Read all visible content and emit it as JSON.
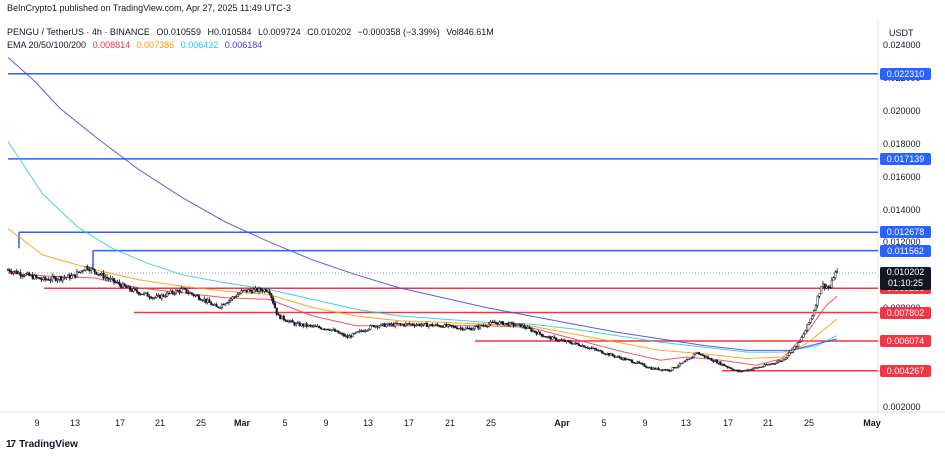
{
  "attribution": "BeInCrypto1 published on TradingView.com, Apr 27, 2025 11:49 UTC-3",
  "symbol": {
    "pair": "PENGU / TetherUS · 4h · BINANCE",
    "ohlc": [
      {
        "key": "O",
        "value": "0.010559"
      },
      {
        "key": "H",
        "value": "0.010584"
      },
      {
        "key": "L",
        "value": "0.009724"
      },
      {
        "key": "C",
        "value": "0.010202"
      }
    ],
    "change": "−0.000358 (−3.39%)",
    "volume_label": "Vol",
    "volume": "846.61M"
  },
  "ema": {
    "label": "EMA 20/50/100/200",
    "values": [
      {
        "value": "0.008814",
        "color": "#f23645"
      },
      {
        "value": "0.007386",
        "color": "#ff9800"
      },
      {
        "value": "0.006432",
        "color": "#26c6da"
      },
      {
        "value": "0.006184",
        "color": "#3d3df0"
      }
    ]
  },
  "footer": {
    "logo": "17",
    "brand": "TradingView"
  },
  "chart_data": {
    "type": "candlestick",
    "currency": "USDT",
    "ylim": [
      0.002,
      0.024
    ],
    "y_ticks": [
      "0.024000",
      "0.022000",
      "0.020000",
      "0.018000",
      "0.016000",
      "0.014000",
      "0.012000",
      "0.010000",
      "0.008000",
      "0.006000",
      "0.004000",
      "0.002000"
    ],
    "x_ticks": [
      "9",
      "13",
      "17",
      "21",
      "25",
      "Mar",
      "5",
      "9",
      "13",
      "17",
      "21",
      "25",
      "Apr",
      "5",
      "9",
      "13",
      "17",
      "21",
      "25",
      "May"
    ],
    "last_price": {
      "value": "0.010202",
      "countdown": "01:10:25",
      "color": "#131722"
    },
    "resistance_levels": [
      {
        "value": 0.02231,
        "label": "0.022310",
        "color": "#2962ff"
      },
      {
        "value": 0.017139,
        "label": "0.017139",
        "color": "#2962ff"
      },
      {
        "value": 0.012678,
        "label": "0.012678",
        "color": "#2962ff"
      },
      {
        "value": 0.011562,
        "label": "0.011562",
        "color": "#2962ff"
      }
    ],
    "support_levels": [
      {
        "value": 0.00928,
        "label": "0.009280",
        "color": "#f23645"
      },
      {
        "value": 0.007802,
        "label": "0.007802",
        "color": "#f23645"
      },
      {
        "value": 0.006074,
        "label": "0.006074",
        "color": "#f23645"
      },
      {
        "value": 0.004267,
        "label": "0.004267",
        "color": "#f23645"
      }
    ],
    "price_series": [
      [
        0,
        0.0104
      ],
      [
        0.04,
        0.0098
      ],
      [
        0.075,
        0.01
      ],
      [
        0.09,
        0.0106
      ],
      [
        0.11,
        0.01
      ],
      [
        0.14,
        0.0092
      ],
      [
        0.17,
        0.0087
      ],
      [
        0.2,
        0.0092
      ],
      [
        0.225,
        0.0086
      ],
      [
        0.24,
        0.0081
      ],
      [
        0.27,
        0.0091
      ],
      [
        0.3,
        0.0092
      ],
      [
        0.31,
        0.0076
      ],
      [
        0.33,
        0.0071
      ],
      [
        0.37,
        0.0068
      ],
      [
        0.39,
        0.0063
      ],
      [
        0.42,
        0.007
      ],
      [
        0.46,
        0.0071
      ],
      [
        0.5,
        0.007
      ],
      [
        0.53,
        0.0068
      ],
      [
        0.56,
        0.0072
      ],
      [
        0.59,
        0.007
      ],
      [
        0.62,
        0.0063
      ],
      [
        0.66,
        0.0058
      ],
      [
        0.7,
        0.0051
      ],
      [
        0.72,
        0.0048
      ],
      [
        0.74,
        0.0044
      ],
      [
        0.76,
        0.0043
      ],
      [
        0.785,
        0.005
      ],
      [
        0.79,
        0.0054
      ],
      [
        0.81,
        0.0049
      ],
      [
        0.84,
        0.0042
      ],
      [
        0.865,
        0.0045
      ],
      [
        0.89,
        0.0049
      ],
      [
        0.91,
        0.006
      ],
      [
        0.925,
        0.0077
      ],
      [
        0.935,
        0.0095
      ],
      [
        0.945,
        0.0093
      ],
      [
        0.95,
        0.0102
      ],
      [
        0.953,
        0.0102
      ]
    ],
    "ema_series": [
      {
        "name": "EMA 20",
        "color": "#f23645",
        "points": [
          [
            0,
            0.0102
          ],
          [
            0.05,
            0.01
          ],
          [
            0.1,
            0.0099
          ],
          [
            0.15,
            0.0093
          ],
          [
            0.2,
            0.009
          ],
          [
            0.25,
            0.0087
          ],
          [
            0.3,
            0.0086
          ],
          [
            0.35,
            0.0076
          ],
          [
            0.4,
            0.007
          ],
          [
            0.45,
            0.007
          ],
          [
            0.5,
            0.007
          ],
          [
            0.55,
            0.007
          ],
          [
            0.6,
            0.0069
          ],
          [
            0.65,
            0.0062
          ],
          [
            0.7,
            0.0055
          ],
          [
            0.75,
            0.0049
          ],
          [
            0.78,
            0.0051
          ],
          [
            0.82,
            0.0049
          ],
          [
            0.86,
            0.0046
          ],
          [
            0.89,
            0.005
          ],
          [
            0.92,
            0.0067
          ],
          [
            0.94,
            0.0082
          ],
          [
            0.953,
            0.0088
          ]
        ]
      },
      {
        "name": "EMA 50",
        "color": "#ff9800",
        "points": [
          [
            0,
            0.0129
          ],
          [
            0.04,
            0.0113
          ],
          [
            0.1,
            0.0104
          ],
          [
            0.15,
            0.0098
          ],
          [
            0.2,
            0.0094
          ],
          [
            0.25,
            0.0091
          ],
          [
            0.3,
            0.0089
          ],
          [
            0.35,
            0.0081
          ],
          [
            0.4,
            0.0076
          ],
          [
            0.45,
            0.0073
          ],
          [
            0.5,
            0.0072
          ],
          [
            0.55,
            0.0071
          ],
          [
            0.6,
            0.007
          ],
          [
            0.65,
            0.0065
          ],
          [
            0.7,
            0.006
          ],
          [
            0.75,
            0.0055
          ],
          [
            0.8,
            0.0053
          ],
          [
            0.85,
            0.005
          ],
          [
            0.89,
            0.0051
          ],
          [
            0.92,
            0.006
          ],
          [
            0.953,
            0.0074
          ]
        ]
      },
      {
        "name": "EMA 100",
        "color": "#26c6da",
        "points": [
          [
            0,
            0.0182
          ],
          [
            0.04,
            0.015
          ],
          [
            0.08,
            0.013
          ],
          [
            0.12,
            0.0117
          ],
          [
            0.16,
            0.0108
          ],
          [
            0.2,
            0.0101
          ],
          [
            0.25,
            0.0096
          ],
          [
            0.3,
            0.0092
          ],
          [
            0.35,
            0.0086
          ],
          [
            0.4,
            0.008
          ],
          [
            0.45,
            0.0076
          ],
          [
            0.5,
            0.0074
          ],
          [
            0.55,
            0.0072
          ],
          [
            0.6,
            0.0071
          ],
          [
            0.65,
            0.0068
          ],
          [
            0.7,
            0.0064
          ],
          [
            0.75,
            0.006
          ],
          [
            0.8,
            0.0057
          ],
          [
            0.85,
            0.0054
          ],
          [
            0.89,
            0.0054
          ],
          [
            0.93,
            0.0058
          ],
          [
            0.953,
            0.0064
          ]
        ]
      },
      {
        "name": "EMA 200",
        "color": "#3d3df0",
        "points": [
          [
            0,
            0.0233
          ],
          [
            0.03,
            0.0219
          ],
          [
            0.06,
            0.0202
          ],
          [
            0.1,
            0.0185
          ],
          [
            0.15,
            0.0165
          ],
          [
            0.2,
            0.0148
          ],
          [
            0.25,
            0.0133
          ],
          [
            0.3,
            0.0121
          ],
          [
            0.35,
            0.011
          ],
          [
            0.4,
            0.0101
          ],
          [
            0.45,
            0.0093
          ],
          [
            0.5,
            0.0087
          ],
          [
            0.55,
            0.0081
          ],
          [
            0.6,
            0.0076
          ],
          [
            0.65,
            0.0071
          ],
          [
            0.7,
            0.0066
          ],
          [
            0.75,
            0.0062
          ],
          [
            0.8,
            0.0058
          ],
          [
            0.85,
            0.0055
          ],
          [
            0.9,
            0.0055
          ],
          [
            0.953,
            0.0062
          ]
        ]
      }
    ],
    "x_domain": [
      0,
      1
    ],
    "grid": false,
    "legend": "top-left"
  }
}
